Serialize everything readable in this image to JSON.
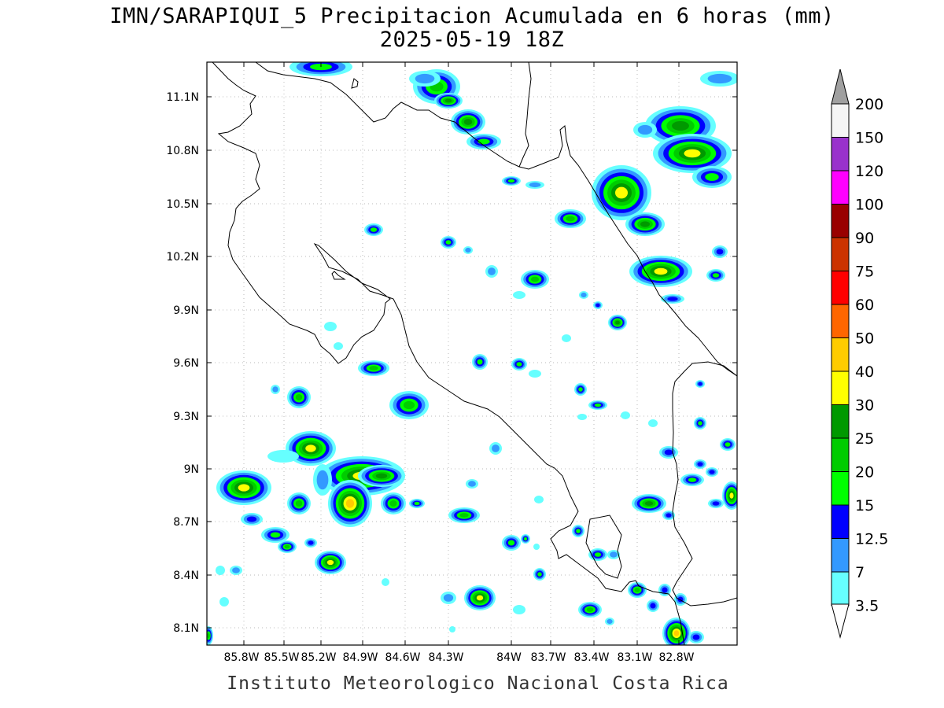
{
  "title": {
    "line1": "IMN/SARAPIQUI_5 Precipitacion Acumulada en 6 horas (mm)",
    "line2": "2025-05-19 18Z"
  },
  "footer": "Instituto Meteorologico Nacional Costa Rica",
  "map": {
    "lon_range": [
      -86.02,
      -82.53
    ],
    "lat_range": [
      8.0,
      11.3
    ],
    "lon_ticks": [
      "85.8W",
      "85.5W",
      "85.2W",
      "84.9W",
      "84.6W",
      "84.3W",
      "84W",
      "83.7W",
      "83.4W",
      "83.1W",
      "82.8W"
    ],
    "lat_ticks": [
      "11.1N",
      "10.8N",
      "10.5N",
      "10.2N",
      "9.9N",
      "9.6N",
      "9.3N",
      "9N",
      "8.7N",
      "8.4N",
      "8.1N"
    ],
    "grid": "dotted"
  },
  "colorbar": {
    "labels": [
      "200",
      "150",
      "120",
      "100",
      "90",
      "75",
      "60",
      "50",
      "40",
      "30",
      "25",
      "20",
      "15",
      "12.5",
      "7",
      "3.5"
    ],
    "colors": [
      "#f5f5f5",
      "#9932cc",
      "#ff00ff",
      "#990000",
      "#cc3300",
      "#ff0000",
      "#ff6600",
      "#ffcc00",
      "#ffff00",
      "#009900",
      "#00cc00",
      "#00ff00",
      "#0000ff",
      "#3399ff",
      "#66ffff"
    ],
    "over_color": "#a0a0a0",
    "under_color": "#ffffff"
  }
}
